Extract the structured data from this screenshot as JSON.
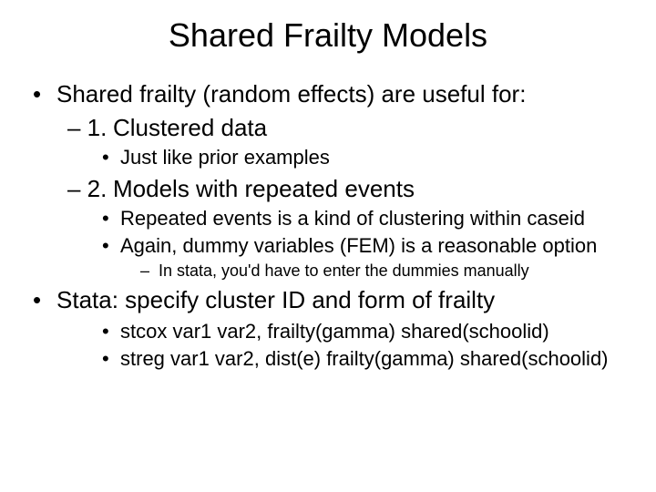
{
  "title": "Shared Frailty Models",
  "b1": {
    "bullet": "•",
    "text": "Shared frailty (random effects) are useful for:"
  },
  "b2": {
    "bullet": "– 1.",
    "text": "Clustered data"
  },
  "b3": {
    "bullet": "•",
    "text": "Just like prior examples"
  },
  "b4": {
    "bullet": "– 2.",
    "text": "Models with repeated events"
  },
  "b5": {
    "bullet": "•",
    "text": "Repeated events is a kind of clustering within caseid"
  },
  "b6": {
    "bullet": "•",
    "text": "Again, dummy variables (FEM) is a reasonable option"
  },
  "b7": {
    "bullet": "–",
    "text": "In stata, you'd have to enter the dummies manually"
  },
  "b8": {
    "bullet": "•",
    "text": "Stata:  specify cluster ID and form of frailty"
  },
  "b9": {
    "bullet": "•",
    "text": "stcox var1 var2, frailty(gamma) shared(schoolid)"
  },
  "b10": {
    "bullet": "•",
    "text": "streg var1 var2, dist(e) frailty(gamma) shared(schoolid)"
  },
  "colors": {
    "background": "#ffffff",
    "text": "#000000"
  },
  "font": {
    "family": "Arial",
    "title_size": 36,
    "lvl1_size": 26,
    "lvl2_size": 26,
    "lvl3_size": 22,
    "lvl4_size": 18
  }
}
